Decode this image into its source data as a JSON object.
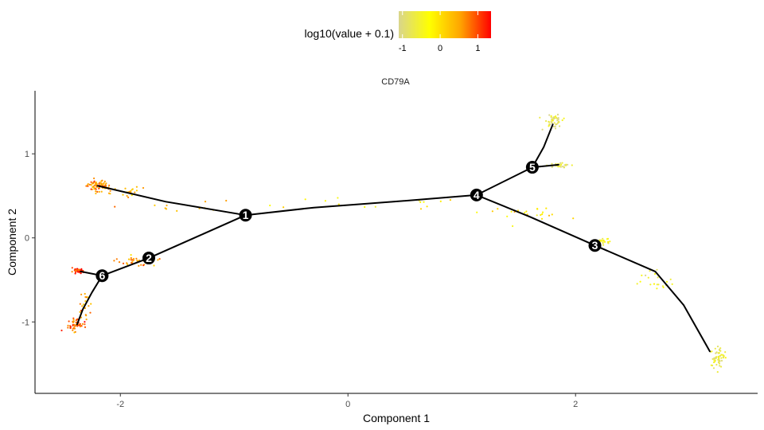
{
  "chart_data": {
    "type": "scatter",
    "title": "CD79A",
    "xlabel": "Component 1",
    "ylabel": "Component 2",
    "xlim": [
      -2.75,
      3.6
    ],
    "ylim": [
      -1.85,
      1.75
    ],
    "x_ticks": [
      -2,
      0,
      2
    ],
    "y_ticks": [
      -1,
      0,
      1
    ],
    "grid": false,
    "legend": {
      "title": "log10(value + 0.1)",
      "placement": "top",
      "ticks": [
        -1,
        0,
        1
      ],
      "range": [
        -1.1,
        1.35
      ],
      "colors": [
        "#d9d58c",
        "#ffff00",
        "#ffa500",
        "#ff0000"
      ]
    },
    "trajectory_color": "#000000",
    "nodes": [
      {
        "label": "1",
        "x": -0.9,
        "y": 0.27
      },
      {
        "label": "2",
        "x": -1.75,
        "y": -0.24
      },
      {
        "label": "3",
        "x": 2.17,
        "y": -0.09
      },
      {
        "label": "4",
        "x": 1.13,
        "y": 0.51
      },
      {
        "label": "5",
        "x": 1.62,
        "y": 0.84
      },
      {
        "label": "6",
        "x": -2.16,
        "y": -0.45
      }
    ],
    "branches": [
      {
        "from": "1",
        "to": "4",
        "points": [
          [
            -0.9,
            0.27
          ],
          [
            -0.3,
            0.36
          ],
          [
            0.4,
            0.43
          ],
          [
            1.13,
            0.51
          ]
        ]
      },
      {
        "from": "1",
        "to": "leaf-upper-left",
        "points": [
          [
            -0.9,
            0.27
          ],
          [
            -1.6,
            0.43
          ],
          [
            -2.2,
            0.62
          ]
        ]
      },
      {
        "from": "1",
        "to": "2",
        "points": [
          [
            -0.9,
            0.27
          ],
          [
            -1.3,
            0.03
          ],
          [
            -1.75,
            -0.24
          ]
        ]
      },
      {
        "from": "2",
        "to": "6",
        "points": [
          [
            -1.75,
            -0.24
          ],
          [
            -2.16,
            -0.45
          ]
        ]
      },
      {
        "from": "6",
        "to": "leaf-left",
        "points": [
          [
            -2.16,
            -0.45
          ],
          [
            -2.35,
            -0.4
          ]
        ]
      },
      {
        "from": "6",
        "to": "leaf-lower-left",
        "points": [
          [
            -2.16,
            -0.45
          ],
          [
            -2.25,
            -0.65
          ],
          [
            -2.33,
            -0.85
          ],
          [
            -2.38,
            -1.03
          ]
        ]
      },
      {
        "from": "4",
        "to": "5",
        "points": [
          [
            1.13,
            0.51
          ],
          [
            1.62,
            0.84
          ]
        ]
      },
      {
        "from": "5",
        "to": "leaf-upper-right",
        "points": [
          [
            1.62,
            0.84
          ],
          [
            1.72,
            1.08
          ],
          [
            1.8,
            1.35
          ]
        ]
      },
      {
        "from": "5",
        "to": "leaf-right",
        "points": [
          [
            1.62,
            0.84
          ],
          [
            1.85,
            0.87
          ]
        ]
      },
      {
        "from": "4",
        "to": "3",
        "points": [
          [
            1.13,
            0.51
          ],
          [
            1.6,
            0.25
          ],
          [
            2.17,
            -0.09
          ]
        ]
      },
      {
        "from": "3",
        "to": "leaf-lower-right",
        "points": [
          [
            2.17,
            -0.09
          ],
          [
            2.7,
            -0.4
          ],
          [
            2.95,
            -0.8
          ],
          [
            3.18,
            -1.35
          ]
        ]
      }
    ],
    "cell_clusters": [
      {
        "x": -2.2,
        "y": 0.62,
        "sx": 0.05,
        "sy": 0.035,
        "n": 70,
        "value": 0.6
      },
      {
        "x": -1.95,
        "y": 0.55,
        "sx": 0.1,
        "sy": 0.03,
        "n": 20,
        "value": 0.4
      },
      {
        "x": -2.37,
        "y": -0.39,
        "sx": 0.025,
        "sy": 0.015,
        "n": 40,
        "value": 1.1
      },
      {
        "x": -2.38,
        "y": -1.04,
        "sx": 0.04,
        "sy": 0.04,
        "n": 50,
        "value": 0.8
      },
      {
        "x": -2.3,
        "y": -0.8,
        "sx": 0.025,
        "sy": 0.1,
        "n": 20,
        "value": 0.5
      },
      {
        "x": -1.85,
        "y": -0.27,
        "sx": 0.1,
        "sy": 0.03,
        "n": 45,
        "value": 0.6
      },
      {
        "x": -1.55,
        "y": 0.38,
        "sx": 0.3,
        "sy": 0.04,
        "n": 12,
        "value": 0.3
      },
      {
        "x": 0.2,
        "y": 0.4,
        "sx": 0.6,
        "sy": 0.04,
        "n": 14,
        "value": -0.2
      },
      {
        "x": 1.8,
        "y": 1.39,
        "sx": 0.04,
        "sy": 0.04,
        "n": 45,
        "value": -0.8
      },
      {
        "x": 1.85,
        "y": 0.87,
        "sx": 0.05,
        "sy": 0.015,
        "n": 30,
        "value": -0.8
      },
      {
        "x": 1.55,
        "y": 0.3,
        "sx": 0.18,
        "sy": 0.04,
        "n": 22,
        "value": -0.2
      },
      {
        "x": 2.22,
        "y": -0.04,
        "sx": 0.04,
        "sy": 0.02,
        "n": 25,
        "value": -0.5
      },
      {
        "x": 2.75,
        "y": -0.55,
        "sx": 0.1,
        "sy": 0.09,
        "n": 20,
        "value": -0.6
      },
      {
        "x": 3.25,
        "y": -1.42,
        "sx": 0.04,
        "sy": 0.06,
        "n": 55,
        "value": -0.7
      }
    ]
  }
}
